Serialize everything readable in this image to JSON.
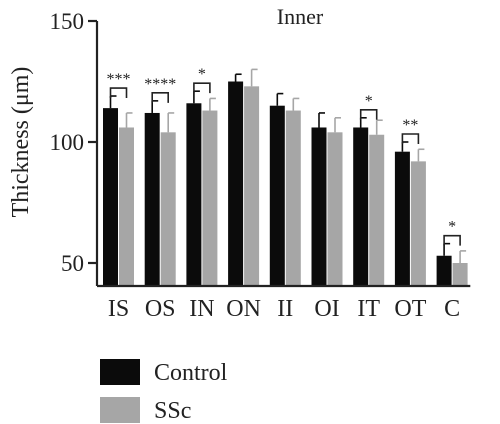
{
  "chart_data": {
    "type": "bar",
    "title": "Inner",
    "ylabel": "Thickness (μm)",
    "xlabel": "",
    "ylim": [
      40,
      150
    ],
    "yticks": [
      50,
      100,
      150
    ],
    "categories": [
      "IS",
      "OS",
      "IN",
      "ON",
      "II",
      "OI",
      "IT",
      "OT",
      "C"
    ],
    "series": [
      {
        "name": "Control",
        "color": "#0b0b0b",
        "values": [
          114,
          112,
          116,
          125,
          115,
          106,
          106,
          96,
          53
        ],
        "errors": [
          5,
          5,
          5,
          3,
          5,
          6,
          4,
          4,
          5
        ]
      },
      {
        "name": "SSc",
        "color": "#a6a6a6",
        "values": [
          106,
          104,
          113,
          123,
          113,
          104,
          103,
          92,
          50
        ],
        "errors": [
          6,
          8,
          5,
          7,
          5,
          6,
          6,
          5,
          5
        ]
      }
    ],
    "significance": [
      {
        "category": "IS",
        "label": "***"
      },
      {
        "category": "OS",
        "label": "****"
      },
      {
        "category": "IN",
        "label": "*"
      },
      {
        "category": "IT",
        "label": "*"
      },
      {
        "category": "OT",
        "label": "**"
      },
      {
        "category": "C",
        "label": "*"
      }
    ],
    "legend": {
      "position": "bottom-left",
      "entries": [
        "Control",
        "SSc"
      ]
    }
  }
}
